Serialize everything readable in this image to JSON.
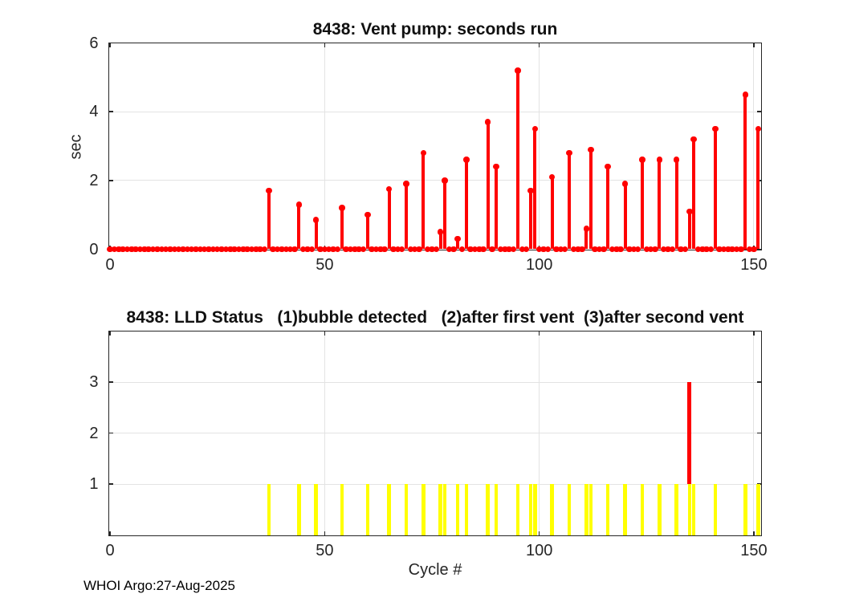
{
  "figure": {
    "footer": "WHOI Argo:27-Aug-2025"
  },
  "chart_data": [
    {
      "type": "stem",
      "title": "8438: Vent pump: seconds run",
      "xlabel": "",
      "ylabel": "sec",
      "xlim": [
        -0.3,
        151.6
      ],
      "ylim": [
        0,
        6
      ],
      "xticks": [
        0,
        50,
        100,
        150
      ],
      "yticks": [
        0,
        2,
        4,
        6
      ],
      "grid": true,
      "stem_color": "#ff0000",
      "cycle_range": [
        0,
        151
      ],
      "points": [
        {
          "cycle": 37,
          "sec": 1.7
        },
        {
          "cycle": 44,
          "sec": 1.3
        },
        {
          "cycle": 48,
          "sec": 0.85
        },
        {
          "cycle": 54,
          "sec": 1.2
        },
        {
          "cycle": 60,
          "sec": 1.0
        },
        {
          "cycle": 65,
          "sec": 1.75
        },
        {
          "cycle": 69,
          "sec": 1.9
        },
        {
          "cycle": 73,
          "sec": 2.8
        },
        {
          "cycle": 77,
          "sec": 0.5
        },
        {
          "cycle": 78,
          "sec": 2.0
        },
        {
          "cycle": 81,
          "sec": 0.3
        },
        {
          "cycle": 83,
          "sec": 2.6
        },
        {
          "cycle": 88,
          "sec": 3.7
        },
        {
          "cycle": 90,
          "sec": 2.4
        },
        {
          "cycle": 95,
          "sec": 5.2
        },
        {
          "cycle": 98,
          "sec": 1.7
        },
        {
          "cycle": 99,
          "sec": 3.5
        },
        {
          "cycle": 103,
          "sec": 2.1
        },
        {
          "cycle": 107,
          "sec": 2.8
        },
        {
          "cycle": 111,
          "sec": 0.6
        },
        {
          "cycle": 112,
          "sec": 2.9
        },
        {
          "cycle": 116,
          "sec": 2.4
        },
        {
          "cycle": 120,
          "sec": 1.9
        },
        {
          "cycle": 124,
          "sec": 2.6
        },
        {
          "cycle": 128,
          "sec": 2.6
        },
        {
          "cycle": 132,
          "sec": 2.6
        },
        {
          "cycle": 135,
          "sec": 1.1
        },
        {
          "cycle": 136,
          "sec": 3.2
        },
        {
          "cycle": 141,
          "sec": 3.5
        },
        {
          "cycle": 148,
          "sec": 4.5
        },
        {
          "cycle": 151,
          "sec": 3.5
        }
      ]
    },
    {
      "type": "bar",
      "title": "8438: LLD Status   (1)bubble detected   (2)after first vent  (3)after second vent",
      "xlabel": "Cycle #",
      "ylabel": "",
      "xlim": [
        -0.3,
        151.6
      ],
      "ylim": [
        0,
        4
      ],
      "xticks": [
        0,
        50,
        100,
        150
      ],
      "yticks": [
        1,
        2,
        3
      ],
      "grid": true,
      "bar_color": "#ffff00",
      "stem_color": "#ff0000",
      "bars": [
        {
          "cycle": 37,
          "value": 1
        },
        {
          "cycle": 44,
          "value": 1
        },
        {
          "cycle": 48,
          "value": 1
        },
        {
          "cycle": 54,
          "value": 1
        },
        {
          "cycle": 60,
          "value": 1
        },
        {
          "cycle": 65,
          "value": 1
        },
        {
          "cycle": 69,
          "value": 1
        },
        {
          "cycle": 73,
          "value": 1
        },
        {
          "cycle": 77,
          "value": 1
        },
        {
          "cycle": 78,
          "value": 1
        },
        {
          "cycle": 81,
          "value": 1
        },
        {
          "cycle": 83,
          "value": 1
        },
        {
          "cycle": 88,
          "value": 1
        },
        {
          "cycle": 90,
          "value": 1
        },
        {
          "cycle": 95,
          "value": 1
        },
        {
          "cycle": 98,
          "value": 1
        },
        {
          "cycle": 99,
          "value": 1
        },
        {
          "cycle": 103,
          "value": 1
        },
        {
          "cycle": 107,
          "value": 1
        },
        {
          "cycle": 111,
          "value": 1
        },
        {
          "cycle": 112,
          "value": 1
        },
        {
          "cycle": 116,
          "value": 1
        },
        {
          "cycle": 120,
          "value": 1
        },
        {
          "cycle": 124,
          "value": 1
        },
        {
          "cycle": 128,
          "value": 1
        },
        {
          "cycle": 132,
          "value": 1
        },
        {
          "cycle": 135,
          "value": 1
        },
        {
          "cycle": 136,
          "value": 1
        },
        {
          "cycle": 141,
          "value": 1
        },
        {
          "cycle": 148,
          "value": 1
        },
        {
          "cycle": 151,
          "value": 1
        }
      ],
      "red_stems": [
        {
          "cycle": 135,
          "from": 1,
          "to": 3
        }
      ]
    }
  ]
}
